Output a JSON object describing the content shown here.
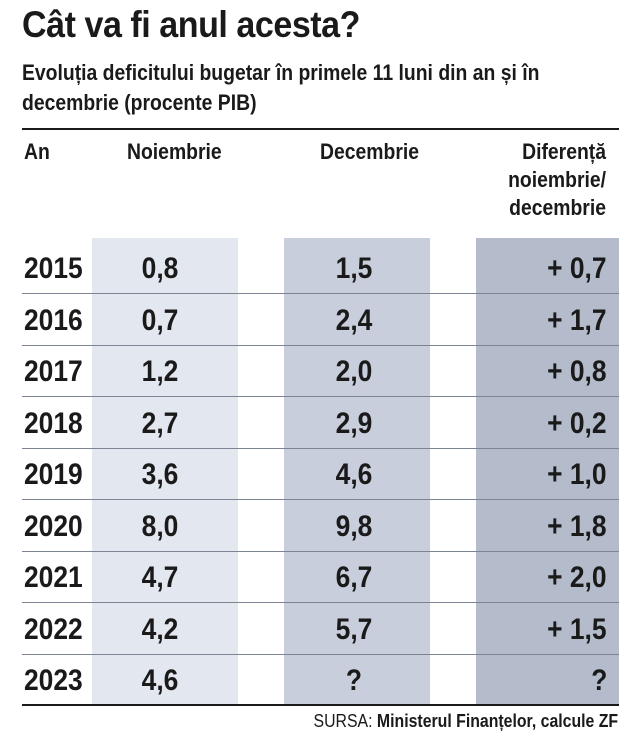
{
  "title": "Cât va fi anul acesta?",
  "subtitle": "Evoluția deficitului bugetar în primele 11 luni din an și în decembrie (procente PIB)",
  "chart_data": {
    "type": "table",
    "title": "Cât va fi anul acesta?",
    "subtitle": "Evoluția deficitului bugetar în primele 11 luni din an și în decembrie (procente PIB)",
    "columns": [
      "An",
      "Noiembrie",
      "Decembrie",
      "Diferență noiembrie/ decembrie"
    ],
    "rows": [
      {
        "year": "2015",
        "noiembrie": "0,8",
        "decembrie": "1,5",
        "diferenta": "+ 0,7"
      },
      {
        "year": "2016",
        "noiembrie": "0,7",
        "decembrie": "2,4",
        "diferenta": "+ 1,7"
      },
      {
        "year": "2017",
        "noiembrie": "1,2",
        "decembrie": "2,0",
        "diferenta": "+ 0,8"
      },
      {
        "year": "2018",
        "noiembrie": "2,7",
        "decembrie": "2,9",
        "diferenta": "+ 0,2"
      },
      {
        "year": "2019",
        "noiembrie": "3,6",
        "decembrie": "4,6",
        "diferenta": "+ 1,0"
      },
      {
        "year": "2020",
        "noiembrie": "8,0",
        "decembrie": "9,8",
        "diferenta": "+ 1,8"
      },
      {
        "year": "2021",
        "noiembrie": "4,7",
        "decembrie": "6,7",
        "diferenta": "+ 2,0"
      },
      {
        "year": "2022",
        "noiembrie": "4,2",
        "decembrie": "5,7",
        "diferenta": "+ 1,5"
      },
      {
        "year": "2023",
        "noiembrie": "4,6",
        "decembrie": "?",
        "diferenta": "?"
      }
    ]
  },
  "source": {
    "label": "SURSA:",
    "text": "Ministerul Finanțelor, calcule ZF"
  },
  "colors": {
    "column_light": "#e3e7ef",
    "column_mid": "#c8cedb",
    "column_dark": "#b4bccc",
    "text": "#1a1a1a",
    "row_separator": "#7d8494"
  }
}
